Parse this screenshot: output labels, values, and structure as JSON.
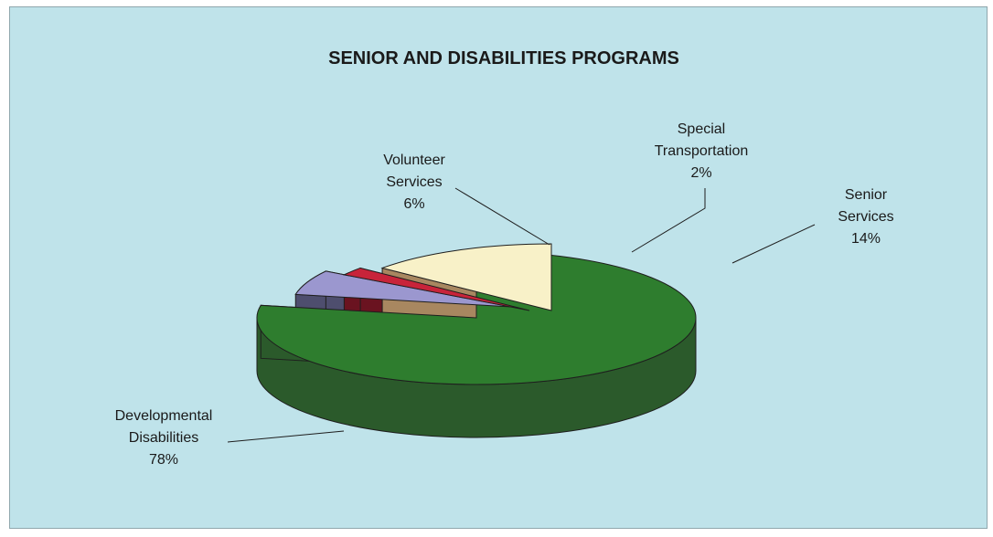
{
  "chart_data": {
    "type": "pie",
    "title": "SENIOR AND DISABILITIES PROGRAMS",
    "slices": [
      {
        "label": [
          "Developmental",
          "Disabilities"
        ],
        "value": 78,
        "value_label": "78%",
        "color": "#2e7d2e"
      },
      {
        "label": [
          "Volunteer",
          "Services"
        ],
        "value": 6,
        "value_label": "6%",
        "color": "#9b97cf"
      },
      {
        "label": [
          "Special",
          "Transportation"
        ],
        "value": 2,
        "value_label": "2%",
        "color": "#c8243a"
      },
      {
        "label": [
          "Senior",
          "Services"
        ],
        "value": 14,
        "value_label": "14%",
        "color": "#f8f1c8"
      }
    ],
    "style": "3d-exploded-pie"
  }
}
